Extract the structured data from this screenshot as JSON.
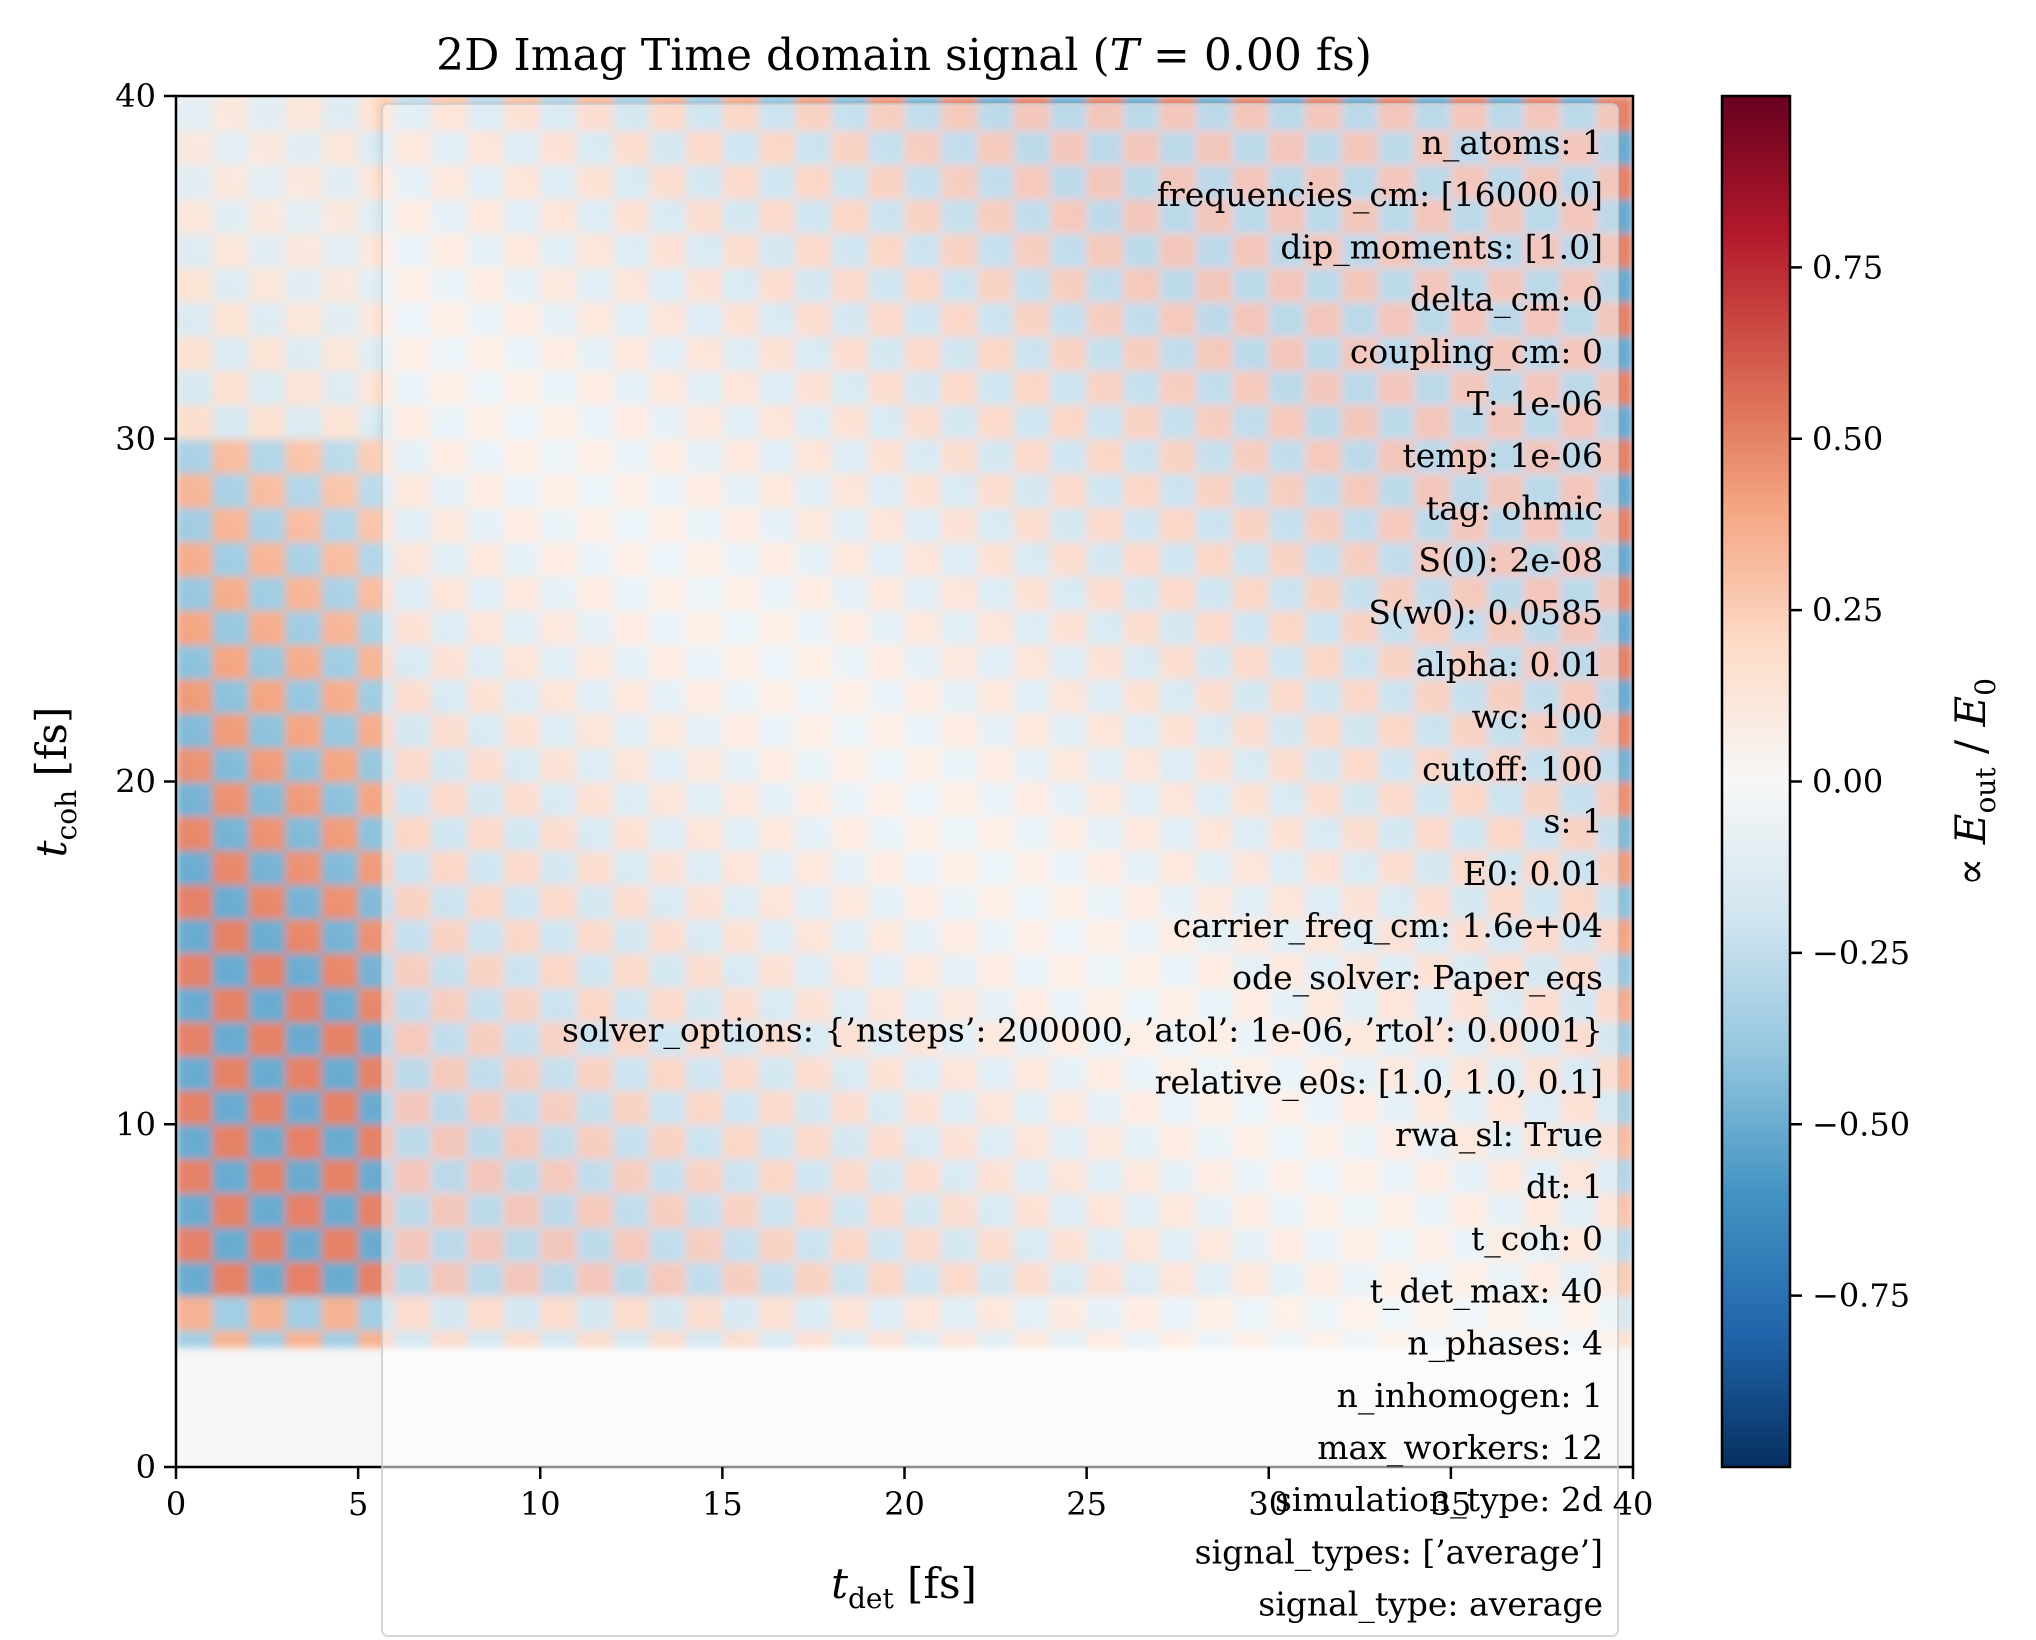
{
  "chart_data": {
    "type": "heatmap",
    "title": "2D Imag Time domain signal (T = 0.00 fs)",
    "xlabel": "t_det [fs]",
    "ylabel": "t_coh [fs]",
    "xlim": [
      0,
      40
    ],
    "ylim": [
      0,
      40
    ],
    "x_ticks": [
      0,
      5,
      10,
      15,
      20,
      25,
      30,
      35,
      40
    ],
    "y_ticks": [
      0,
      10,
      20,
      30,
      40
    ],
    "x_tick_labels": [
      "0",
      "5",
      "10",
      "15",
      "20",
      "25",
      "30",
      "35",
      "40"
    ],
    "y_tick_labels": [
      "0",
      "10",
      "20",
      "30",
      "40"
    ],
    "colormap": "RdBu_r",
    "colorbar": {
      "label": "∝ E_out / E_0",
      "range": [
        -1.0,
        1.0
      ],
      "ticks": [
        0.75,
        0.5,
        0.25,
        0.0,
        -0.25,
        -0.5,
        -0.75
      ],
      "tick_labels": [
        "0.75",
        "0.50",
        "0.25",
        "0.00",
        "−0.25",
        "−0.50",
        "−0.75"
      ]
    },
    "grid": false,
    "signal_onset_t_coh": 3.5,
    "oscillation_period_fs": 2.0
  },
  "annotation_box": {
    "lines": [
      "n_atoms: 1",
      "frequencies_cm: [16000.0]",
      "dip_moments: [1.0]",
      "delta_cm: 0",
      "coupling_cm: 0",
      "T: 1e-06",
      "temp: 1e-06",
      "tag: ohmic",
      "S(0): 2e-08",
      "S(w0): 0.0585",
      "alpha: 0.01",
      "wc: 100",
      "cutoff: 100",
      "s: 1",
      "E0: 0.01",
      "carrier_freq_cm: 1.6e+04",
      "ode_solver: Paper_eqs",
      "solver_options: {’nsteps’: 200000, ’atol’: 1e-06, ’rtol’: 0.0001}",
      "relative_e0s: [1.0, 1.0, 0.1]",
      "rwa_sl: True",
      "dt: 1",
      "t_coh: 0",
      "t_det_max: 40",
      "n_phases: 4",
      "n_inhomogen: 1",
      "max_workers: 12",
      "simulation_type: 2d",
      "signal_types: [’average’]",
      "signal_type: average"
    ]
  }
}
